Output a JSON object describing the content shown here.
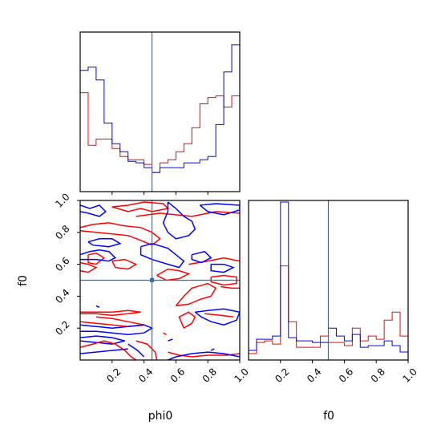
{
  "chart_data": {
    "type": "corner",
    "parameters": [
      "phi0",
      "f0"
    ],
    "xlabel_phi0": "phi0",
    "xlabel_f0": "f0",
    "ylabel_f0": "f0",
    "truth": {
      "phi0": 0.45,
      "f0": 0.5
    },
    "colors": {
      "red": "#ff0000",
      "blue": "#0000ff",
      "truth": "#1f77b4"
    },
    "ticks": {
      "bottom_phi0": [
        "0.2",
        "0.4",
        "0.6",
        "0.8",
        "1.0"
      ],
      "left_f0": [
        "0.2",
        "0.4",
        "0.6",
        "0.8",
        "1.0"
      ],
      "bottom_f0": [
        "0.2",
        "0.4",
        "0.6",
        "0.8",
        "1.0"
      ]
    },
    "hist_phi0": {
      "bin_edges": [
        0.0,
        0.05,
        0.1,
        0.15,
        0.2,
        0.25,
        0.3,
        0.35,
        0.4,
        0.45,
        0.5,
        0.55,
        0.6,
        0.65,
        0.7,
        0.75,
        0.8,
        0.85,
        0.9,
        0.95,
        1.0
      ],
      "series": [
        {
          "color": "red",
          "values": [
            0.62,
            0.29,
            0.33,
            0.33,
            0.27,
            0.22,
            0.2,
            0.2,
            0.17,
            0.12,
            0.18,
            0.2,
            0.25,
            0.3,
            0.4,
            0.55,
            0.59,
            0.6,
            0.53,
            0.6
          ]
        },
        {
          "color": "blue",
          "values": [
            0.76,
            0.78,
            0.7,
            0.43,
            0.3,
            0.25,
            0.19,
            0.18,
            0.15,
            0.12,
            0.15,
            0.15,
            0.15,
            0.18,
            0.18,
            0.2,
            0.22,
            0.42,
            0.75,
            0.92
          ]
        }
      ]
    },
    "hist_f0": {
      "bin_edges": [
        0.0,
        0.05,
        0.1,
        0.15,
        0.2,
        0.25,
        0.3,
        0.35,
        0.4,
        0.45,
        0.5,
        0.55,
        0.6,
        0.65,
        0.7,
        0.75,
        0.8,
        0.85,
        0.9,
        0.95,
        1.0
      ],
      "series": [
        {
          "color": "red",
          "values": [
            0.04,
            0.11,
            0.12,
            0.1,
            0.59,
            0.24,
            0.08,
            0.08,
            0.08,
            0.15,
            0.11,
            0.11,
            0.09,
            0.2,
            0.12,
            0.15,
            0.13,
            0.25,
            0.3,
            0.15
          ]
        },
        {
          "color": "blue",
          "values": [
            0.06,
            0.13,
            0.13,
            0.15,
            0.99,
            0.14,
            0.12,
            0.12,
            0.11,
            0.11,
            0.2,
            0.15,
            0.12,
            0.16,
            0.08,
            0.09,
            0.09,
            0.12,
            0.09,
            0.05
          ]
        }
      ]
    },
    "joint_contours": [
      {
        "color": "blue",
        "points": [
          [
            0.0,
            0.97
          ],
          [
            0.06,
            0.95
          ],
          [
            0.12,
            0.97
          ],
          [
            0.16,
            0.93
          ],
          [
            0.12,
            0.9
          ],
          [
            0.05,
            0.92
          ],
          [
            0.0,
            0.93
          ]
        ]
      },
      {
        "color": "red",
        "points": [
          [
            0.2,
            0.96
          ],
          [
            0.3,
            0.93
          ],
          [
            0.38,
            0.95
          ],
          [
            0.45,
            0.93
          ],
          [
            0.55,
            0.95
          ],
          [
            0.52,
            0.98
          ],
          [
            0.4,
            0.99
          ],
          [
            0.3,
            0.97
          ],
          [
            0.2,
            0.96
          ]
        ]
      },
      {
        "color": "red",
        "points": [
          [
            0.35,
            0.9
          ],
          [
            0.5,
            0.92
          ],
          [
            0.7,
            0.9
          ],
          [
            0.85,
            0.93
          ],
          [
            1.0,
            0.92
          ]
        ]
      },
      {
        "color": "blue",
        "points": [
          [
            0.75,
            0.97
          ],
          [
            0.85,
            0.98
          ],
          [
            1.0,
            0.97
          ],
          [
            1.0,
            0.94
          ],
          [
            0.9,
            0.91
          ],
          [
            0.8,
            0.93
          ],
          [
            0.75,
            0.97
          ]
        ]
      },
      {
        "color": "blue",
        "points": [
          [
            0.55,
            0.99
          ],
          [
            0.6,
            0.95
          ],
          [
            0.65,
            0.9
          ],
          [
            0.7,
            0.87
          ],
          [
            0.72,
            0.82
          ],
          [
            0.68,
            0.78
          ],
          [
            0.6,
            0.76
          ],
          [
            0.55,
            0.8
          ],
          [
            0.52,
            0.86
          ],
          [
            0.55,
            0.93
          ],
          [
            0.55,
            0.99
          ]
        ]
      },
      {
        "color": "red",
        "points": [
          [
            0.0,
            0.83
          ],
          [
            0.08,
            0.85
          ],
          [
            0.18,
            0.86
          ],
          [
            0.28,
            0.84
          ],
          [
            0.38,
            0.83
          ],
          [
            0.45,
            0.8
          ],
          [
            0.5,
            0.76
          ],
          [
            0.45,
            0.72
          ],
          [
            0.38,
            0.75
          ],
          [
            0.3,
            0.78
          ],
          [
            0.2,
            0.79
          ],
          [
            0.1,
            0.8
          ],
          [
            0.0,
            0.81
          ]
        ]
      },
      {
        "color": "blue",
        "points": [
          [
            0.05,
            0.74
          ],
          [
            0.12,
            0.76
          ],
          [
            0.2,
            0.76
          ],
          [
            0.25,
            0.73
          ],
          [
            0.18,
            0.71
          ],
          [
            0.08,
            0.72
          ],
          [
            0.05,
            0.74
          ]
        ]
      },
      {
        "color": "red",
        "points": [
          [
            0.05,
            0.66
          ],
          [
            0.1,
            0.67
          ],
          [
            0.15,
            0.64
          ],
          [
            0.1,
            0.6
          ],
          [
            0.05,
            0.61
          ],
          [
            0.05,
            0.66
          ]
        ]
      },
      {
        "color": "red",
        "points": [
          [
            0.0,
            0.61
          ],
          [
            0.05,
            0.6
          ],
          [
            0.1,
            0.58
          ],
          [
            0.05,
            0.55
          ],
          [
            0.0,
            0.56
          ]
        ]
      },
      {
        "color": "blue",
        "points": [
          [
            0.0,
            0.66
          ],
          [
            0.06,
            0.68
          ],
          [
            0.12,
            0.69
          ],
          [
            0.18,
            0.68
          ],
          [
            0.22,
            0.64
          ],
          [
            0.18,
            0.62
          ],
          [
            0.1,
            0.63
          ],
          [
            0.0,
            0.63
          ]
        ]
      },
      {
        "color": "blue",
        "points": [
          [
            0.38,
            0.71
          ],
          [
            0.45,
            0.73
          ],
          [
            0.55,
            0.7
          ],
          [
            0.6,
            0.66
          ],
          [
            0.65,
            0.62
          ],
          [
            0.62,
            0.58
          ],
          [
            0.55,
            0.6
          ],
          [
            0.45,
            0.63
          ],
          [
            0.38,
            0.66
          ],
          [
            0.38,
            0.71
          ]
        ]
      },
      {
        "color": "red",
        "points": [
          [
            0.2,
            0.62
          ],
          [
            0.28,
            0.63
          ],
          [
            0.35,
            0.6
          ],
          [
            0.3,
            0.57
          ],
          [
            0.22,
            0.58
          ],
          [
            0.2,
            0.62
          ]
        ]
      },
      {
        "color": "red",
        "points": [
          [
            0.48,
            0.53
          ],
          [
            0.55,
            0.57
          ],
          [
            0.62,
            0.56
          ],
          [
            0.68,
            0.54
          ],
          [
            0.62,
            0.51
          ],
          [
            0.54,
            0.5
          ],
          [
            0.48,
            0.53
          ]
        ]
      },
      {
        "color": "red",
        "points": [
          [
            0.68,
            0.6
          ],
          [
            0.8,
            0.62
          ],
          [
            0.9,
            0.64
          ],
          [
            1.0,
            0.62
          ]
        ]
      },
      {
        "color": "blue",
        "points": [
          [
            0.7,
            0.66
          ],
          [
            0.78,
            0.68
          ],
          [
            0.82,
            0.64
          ],
          [
            0.76,
            0.61
          ],
          [
            0.7,
            0.63
          ],
          [
            0.7,
            0.66
          ]
        ]
      },
      {
        "color": "blue",
        "points": [
          [
            0.82,
            0.6
          ],
          [
            0.9,
            0.6
          ],
          [
            0.96,
            0.58
          ],
          [
            0.9,
            0.55
          ],
          [
            0.82,
            0.56
          ],
          [
            0.82,
            0.6
          ]
        ]
      },
      {
        "color": "red",
        "points": [
          [
            0.82,
            0.52
          ],
          [
            0.9,
            0.53
          ],
          [
            0.98,
            0.52
          ],
          [
            0.98,
            0.48
          ],
          [
            0.9,
            0.47
          ],
          [
            0.82,
            0.49
          ],
          [
            0.82,
            0.52
          ]
        ]
      },
      {
        "color": "red",
        "points": [
          [
            0.6,
            0.34
          ],
          [
            0.65,
            0.4
          ],
          [
            0.7,
            0.45
          ],
          [
            0.8,
            0.48
          ],
          [
            0.85,
            0.45
          ],
          [
            0.82,
            0.4
          ],
          [
            0.75,
            0.38
          ],
          [
            0.68,
            0.35
          ],
          [
            0.6,
            0.34
          ]
        ]
      },
      {
        "color": "red",
        "points": [
          [
            0.88,
            0.46
          ],
          [
            0.95,
            0.45
          ],
          [
            1.0,
            0.45
          ]
        ]
      },
      {
        "color": "blue",
        "points": [
          [
            0.1,
            0.34
          ],
          [
            0.12,
            0.33
          ]
        ]
      },
      {
        "color": "blue",
        "points": [
          [
            0.45,
            0.49
          ],
          [
            0.45,
            0.52
          ]
        ]
      },
      {
        "color": "red",
        "points": [
          [
            0.0,
            0.29
          ],
          [
            0.1,
            0.29
          ],
          [
            0.2,
            0.28
          ],
          [
            0.3,
            0.29
          ],
          [
            0.38,
            0.3
          ],
          [
            0.3,
            0.31
          ],
          [
            0.2,
            0.3
          ],
          [
            0.1,
            0.3
          ],
          [
            0.0,
            0.3
          ]
        ]
      },
      {
        "color": "red",
        "points": [
          [
            0.1,
            0.27
          ],
          [
            0.2,
            0.26
          ],
          [
            0.3,
            0.24
          ],
          [
            0.4,
            0.22
          ],
          [
            0.3,
            0.21
          ],
          [
            0.2,
            0.22
          ],
          [
            0.1,
            0.23
          ],
          [
            0.0,
            0.24
          ]
        ]
      },
      {
        "color": "blue",
        "points": [
          [
            0.0,
            0.22
          ],
          [
            0.1,
            0.21
          ],
          [
            0.2,
            0.2
          ],
          [
            0.3,
            0.21
          ],
          [
            0.4,
            0.22
          ],
          [
            0.45,
            0.2
          ],
          [
            0.4,
            0.17
          ],
          [
            0.3,
            0.16
          ],
          [
            0.2,
            0.17
          ],
          [
            0.1,
            0.18
          ],
          [
            0.0,
            0.18
          ]
        ]
      },
      {
        "color": "blue",
        "points": [
          [
            0.0,
            0.14
          ],
          [
            0.1,
            0.15
          ],
          [
            0.2,
            0.14
          ],
          [
            0.28,
            0.12
          ],
          [
            0.2,
            0.1
          ],
          [
            0.1,
            0.11
          ],
          [
            0.0,
            0.12
          ]
        ]
      },
      {
        "color": "red",
        "points": [
          [
            0.0,
            0.08
          ],
          [
            0.08,
            0.1
          ],
          [
            0.15,
            0.12
          ],
          [
            0.22,
            0.1
          ],
          [
            0.28,
            0.06
          ],
          [
            0.32,
            0.02
          ],
          [
            0.35,
            0.0
          ]
        ]
      },
      {
        "color": "red",
        "points": [
          [
            0.35,
            0.12
          ],
          [
            0.42,
            0.1
          ],
          [
            0.47,
            0.05
          ],
          [
            0.48,
            0.0
          ]
        ]
      },
      {
        "color": "blue",
        "points": [
          [
            0.3,
            0.1
          ],
          [
            0.36,
            0.06
          ],
          [
            0.4,
            0.02
          ]
        ]
      },
      {
        "color": "blue",
        "points": [
          [
            0.0,
            0.04
          ],
          [
            0.1,
            0.05
          ],
          [
            0.2,
            0.06
          ],
          [
            0.3,
            0.07
          ]
        ]
      },
      {
        "color": "red",
        "points": [
          [
            0.65,
            0.2
          ],
          [
            0.7,
            0.23
          ],
          [
            0.72,
            0.27
          ],
          [
            0.68,
            0.3
          ],
          [
            0.62,
            0.27
          ],
          [
            0.65,
            0.2
          ]
        ]
      },
      {
        "color": "blue",
        "points": [
          [
            0.72,
            0.3
          ],
          [
            0.8,
            0.31
          ],
          [
            0.9,
            0.32
          ],
          [
            1.0,
            0.3
          ],
          [
            0.98,
            0.25
          ],
          [
            0.9,
            0.22
          ],
          [
            0.82,
            0.24
          ],
          [
            0.76,
            0.27
          ],
          [
            0.72,
            0.3
          ]
        ]
      },
      {
        "color": "red",
        "points": [
          [
            0.78,
            0.29
          ],
          [
            0.88,
            0.28
          ],
          [
            0.96,
            0.27
          ]
        ]
      },
      {
        "color": "red",
        "points": [
          [
            0.52,
            0.17
          ],
          [
            0.54,
            0.16
          ]
        ]
      },
      {
        "color": "blue",
        "points": [
          [
            0.55,
            0.12
          ],
          [
            0.58,
            0.13
          ]
        ]
      },
      {
        "color": "red",
        "points": [
          [
            0.55,
            0.05
          ],
          [
            0.62,
            0.03
          ],
          [
            0.7,
            0.02
          ],
          [
            0.8,
            0.03
          ],
          [
            0.92,
            0.03
          ],
          [
            1.0,
            0.04
          ]
        ]
      },
      {
        "color": "blue",
        "points": [
          [
            0.55,
            0.0
          ],
          [
            0.6,
            0.02
          ],
          [
            0.7,
            0.04
          ],
          [
            0.8,
            0.05
          ],
          [
            0.9,
            0.04
          ],
          [
            1.0,
            0.02
          ]
        ]
      },
      {
        "color": "blue",
        "points": [
          [
            0.82,
            0.06
          ],
          [
            0.84,
            0.07
          ]
        ]
      }
    ]
  }
}
